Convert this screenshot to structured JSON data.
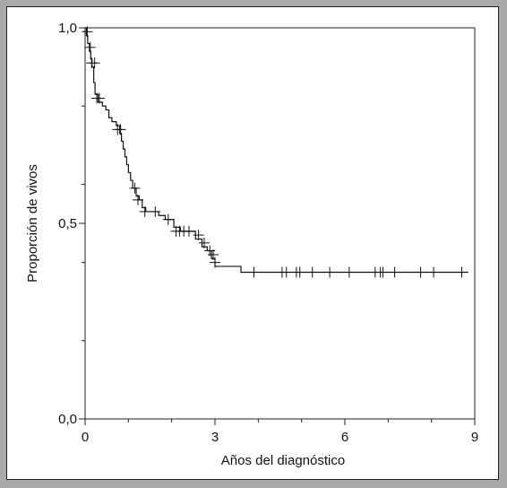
{
  "chart_data": {
    "type": "line",
    "xlabel": "Años del diagnóstico",
    "ylabel": "Proporción de vivos",
    "xlim": [
      0,
      9
    ],
    "ylim": [
      0,
      1
    ],
    "x_ticks": [
      0,
      3,
      6,
      9
    ],
    "x_tick_labels": [
      "0",
      "3",
      "6",
      "9"
    ],
    "y_ticks_major": [
      0,
      0.5,
      1
    ],
    "y_tick_labels": [
      "0,0",
      "0,5",
      "1,0"
    ],
    "y_ticks_minor": [
      0.2,
      0.4,
      0.6,
      0.8
    ],
    "grid": false,
    "series": [
      {
        "step": [
          [
            0.0,
            1.0
          ],
          [
            0.03,
            0.98
          ],
          [
            0.06,
            0.96
          ],
          [
            0.1,
            0.94
          ],
          [
            0.13,
            0.92
          ],
          [
            0.16,
            0.9
          ],
          [
            0.2,
            0.86
          ],
          [
            0.23,
            0.83
          ],
          [
            0.3,
            0.81
          ],
          [
            0.4,
            0.8
          ],
          [
            0.48,
            0.79
          ],
          [
            0.55,
            0.77
          ],
          [
            0.62,
            0.76
          ],
          [
            0.72,
            0.75
          ],
          [
            0.8,
            0.73
          ],
          [
            0.84,
            0.71
          ],
          [
            0.88,
            0.69
          ],
          [
            0.92,
            0.67
          ],
          [
            0.96,
            0.65
          ],
          [
            1.0,
            0.63
          ],
          [
            1.05,
            0.61
          ],
          [
            1.1,
            0.59
          ],
          [
            1.18,
            0.57
          ],
          [
            1.25,
            0.56
          ],
          [
            1.32,
            0.54
          ],
          [
            1.4,
            0.53
          ],
          [
            1.7,
            0.52
          ],
          [
            1.85,
            0.51
          ],
          [
            2.05,
            0.49
          ],
          [
            2.2,
            0.48
          ],
          [
            2.55,
            0.46
          ],
          [
            2.7,
            0.44
          ],
          [
            2.82,
            0.43
          ],
          [
            2.92,
            0.41
          ],
          [
            3.0,
            0.39
          ],
          [
            3.6,
            0.375
          ],
          [
            8.85,
            0.375
          ]
        ],
        "censored": [
          [
            0.05,
            0.99
          ],
          [
            0.12,
            0.95
          ],
          [
            0.15,
            0.91
          ],
          [
            0.22,
            0.91
          ],
          [
            0.27,
            0.82
          ],
          [
            0.33,
            0.82
          ],
          [
            0.75,
            0.74
          ],
          [
            0.82,
            0.74
          ],
          [
            1.15,
            0.59
          ],
          [
            1.22,
            0.56
          ],
          [
            1.38,
            0.53
          ],
          [
            1.62,
            0.53
          ],
          [
            1.92,
            0.51
          ],
          [
            2.1,
            0.48
          ],
          [
            2.18,
            0.48
          ],
          [
            2.28,
            0.48
          ],
          [
            2.4,
            0.48
          ],
          [
            2.62,
            0.47
          ],
          [
            2.75,
            0.45
          ],
          [
            2.88,
            0.43
          ],
          [
            2.96,
            0.42
          ],
          [
            3.0,
            0.4
          ],
          [
            3.9,
            0.375
          ],
          [
            4.55,
            0.375
          ],
          [
            4.65,
            0.375
          ],
          [
            4.88,
            0.375
          ],
          [
            4.96,
            0.375
          ],
          [
            5.25,
            0.375
          ],
          [
            5.65,
            0.375
          ],
          [
            6.1,
            0.375
          ],
          [
            6.7,
            0.375
          ],
          [
            6.82,
            0.375
          ],
          [
            6.88,
            0.375
          ],
          [
            7.15,
            0.375
          ],
          [
            7.75,
            0.375
          ],
          [
            8.05,
            0.375
          ],
          [
            8.7,
            0.375
          ]
        ]
      }
    ]
  }
}
